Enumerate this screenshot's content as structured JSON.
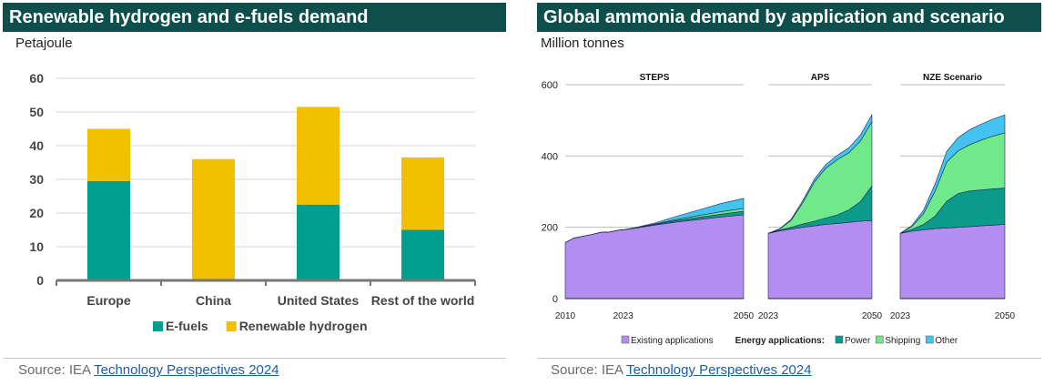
{
  "left": {
    "title": "Renewable hydrogen and e-fuels demand",
    "unit": "Petajoule",
    "source_prefix": "Source: IEA ",
    "source_link": "Technology Perspectives 2024"
  },
  "right": {
    "title": "Global ammonia demand by application and scenario",
    "unit": "Million tonnes",
    "source_prefix": "Source:  IEA ",
    "source_link": "Technology Perspectives 2024"
  },
  "chart_data": [
    {
      "type": "bar",
      "stacked": true,
      "title": "Renewable hydrogen and e-fuels demand",
      "ylabel": "Petajoule",
      "ylim": [
        0,
        60
      ],
      "yticks": [
        0,
        10,
        20,
        30,
        40,
        50,
        60
      ],
      "categories": [
        "Europe",
        "China",
        "United States",
        "Rest of the world"
      ],
      "series": [
        {
          "name": "E-fuels",
          "color": "#009e8f",
          "values": [
            29.5,
            0,
            22.5,
            15
          ]
        },
        {
          "name": "Renewable hydrogen",
          "color": "#f2c000",
          "values": [
            15.5,
            36,
            29,
            21.5
          ]
        }
      ],
      "grid": true,
      "legend": "bottom"
    },
    {
      "type": "area",
      "stacked": true,
      "title": "Global ammonia demand by application and scenario",
      "ylabel": "Million tonnes",
      "ylim": [
        0,
        600
      ],
      "yticks": [
        0,
        200,
        400,
        600
      ],
      "legend_prefix": "Energy applications:",
      "series_info": [
        {
          "name": "Existing applications",
          "color": "#b28ef0"
        },
        {
          "name": "Power",
          "color": "#0c9a8a"
        },
        {
          "name": "Shipping",
          "color": "#6fe98a"
        },
        {
          "name": "Other",
          "color": "#45c3f0"
        }
      ],
      "panels": [
        {
          "name": "STEPS",
          "xticks": [
            "2010",
            "2023",
            "2050"
          ],
          "x": [
            2010,
            2012,
            2014,
            2016,
            2018,
            2020,
            2022,
            2023,
            2026,
            2030,
            2035,
            2040,
            2045,
            2050
          ],
          "series": {
            "Existing applications": [
              157,
              170,
              175,
              180,
              186,
              187,
              192,
              193,
              198,
              206,
              215,
              222,
              229,
              235
            ],
            "Power": [
              0,
              0,
              0,
              0,
              0,
              0,
              0,
              0,
              1,
              2,
              4,
              6,
              8,
              10
            ],
            "Shipping": [
              0,
              0,
              0,
              0,
              0,
              0,
              0,
              0,
              0,
              1,
              3,
              5,
              7,
              8
            ],
            "Other": [
              0,
              0,
              0,
              0,
              0,
              0,
              0,
              0,
              1,
              3,
              9,
              16,
              23,
              28
            ]
          }
        },
        {
          "name": "APS",
          "xticks": [
            "2023",
            "2050"
          ],
          "x": [
            2023,
            2026,
            2029,
            2032,
            2035,
            2038,
            2041,
            2044,
            2047,
            2050
          ],
          "series": {
            "Existing applications": [
              183,
              190,
              195,
              200,
              204,
              208,
              211,
              214,
              217,
              219
            ],
            "Power": [
              0,
              2,
              5,
              9,
              13,
              18,
              24,
              35,
              55,
              97
            ],
            "Shipping": [
              0,
              3,
              20,
              60,
              110,
              140,
              155,
              160,
              170,
              180
            ],
            "Other": [
              0,
              1,
              3,
              6,
              8,
              10,
              12,
              14,
              17,
              20
            ]
          }
        },
        {
          "name": "NZE Scenario",
          "xticks": [
            "2023",
            "2050"
          ],
          "x": [
            2023,
            2026,
            2029,
            2032,
            2035,
            2038,
            2041,
            2044,
            2047,
            2050
          ],
          "series": {
            "Existing applications": [
              183,
              189,
              193,
              196,
              198,
              200,
              202,
              204,
              206,
              208
            ],
            "Power": [
              0,
              5,
              15,
              35,
              75,
              95,
              100,
              101,
              102,
              102
            ],
            "Shipping": [
              0,
              8,
              30,
              70,
              110,
              120,
              130,
              140,
              148,
              155
            ],
            "Other": [
              0,
              3,
              10,
              20,
              30,
              37,
              42,
              45,
              48,
              50
            ]
          }
        }
      ],
      "legend": "bottom"
    }
  ]
}
